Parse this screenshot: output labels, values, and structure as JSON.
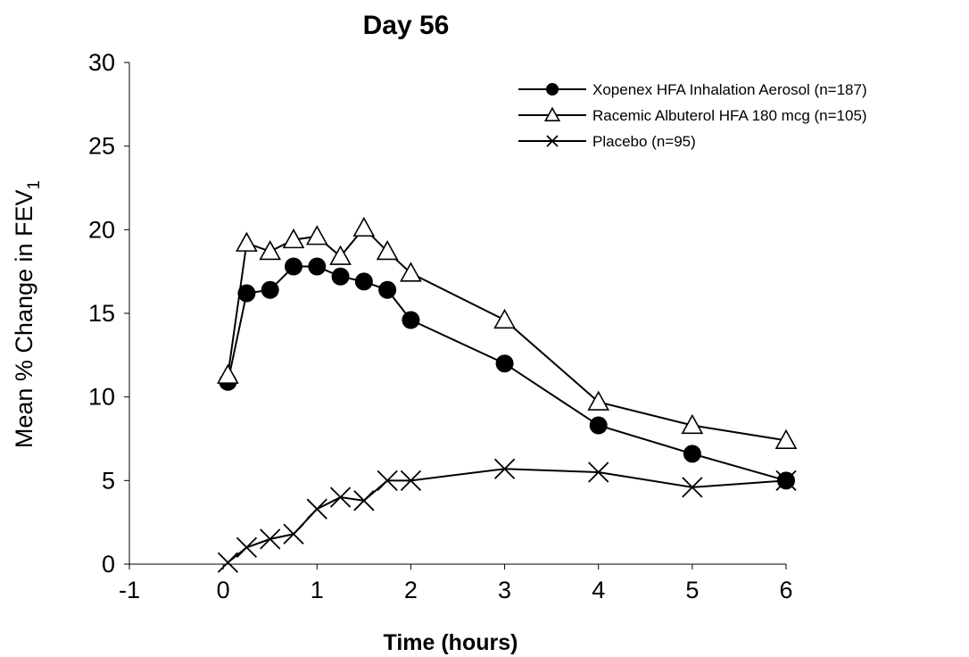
{
  "chart_data": {
    "type": "line",
    "title": "Day 56",
    "xlabel": "Time (hours)",
    "ylabel": "Mean % Change in FEV",
    "ylabel_sub": "1",
    "xlim": [
      -1,
      6
    ],
    "ylim": [
      0,
      30
    ],
    "xticks": [
      -1,
      0,
      1,
      2,
      3,
      4,
      5,
      6
    ],
    "yticks": [
      0,
      5,
      10,
      15,
      20,
      25,
      30
    ],
    "grid": false,
    "legend_position": "top-right",
    "series": [
      {
        "name": "Xopenex HFA Inhalation Aerosol (n=187)",
        "marker": "filled-circle",
        "color": "#000000",
        "x": [
          0.05,
          0.25,
          0.5,
          0.75,
          1.0,
          1.25,
          1.5,
          1.75,
          2.0,
          3.0,
          4.0,
          5.0,
          6.0
        ],
        "y": [
          10.9,
          16.2,
          16.4,
          17.8,
          17.8,
          17.2,
          16.9,
          16.4,
          14.6,
          12.0,
          8.3,
          6.6,
          5.0
        ]
      },
      {
        "name": "Racemic Albuterol HFA 180 mcg (n=105)",
        "marker": "open-triangle",
        "color": "#000000",
        "x": [
          0.05,
          0.25,
          0.5,
          0.75,
          1.0,
          1.25,
          1.5,
          1.75,
          2.0,
          3.0,
          4.0,
          5.0,
          6.0
        ],
        "y": [
          11.3,
          19.2,
          18.7,
          19.4,
          19.6,
          18.4,
          20.1,
          18.7,
          17.4,
          14.6,
          9.7,
          8.3,
          7.4
        ]
      },
      {
        "name": "Placebo (n=95)",
        "marker": "x",
        "color": "#000000",
        "x": [
          0.05,
          0.25,
          0.5,
          0.75,
          1.0,
          1.25,
          1.5,
          1.75,
          2.0,
          3.0,
          4.0,
          5.0,
          6.0
        ],
        "y": [
          0.1,
          1.0,
          1.5,
          1.8,
          3.3,
          4.0,
          3.8,
          5.0,
          5.0,
          5.7,
          5.5,
          4.6,
          5.0
        ]
      }
    ]
  }
}
